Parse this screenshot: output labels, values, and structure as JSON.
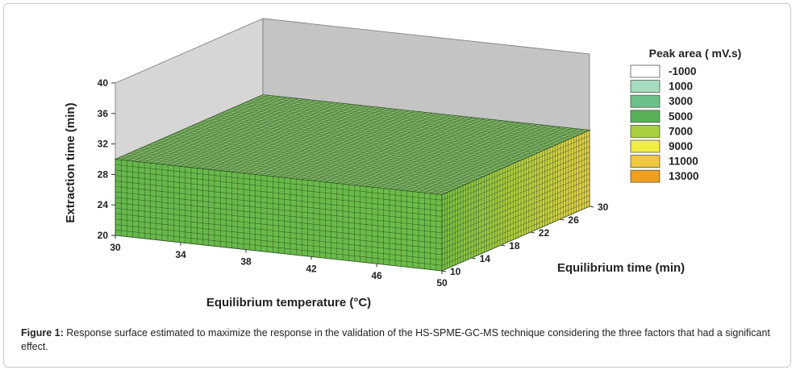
{
  "chart_data": {
    "type": "surface3d",
    "x_axis": {
      "label": "Equilibrium temperature (°C)",
      "ticks": [
        "30",
        "34",
        "38",
        "42",
        "46",
        "50"
      ],
      "range": [
        30,
        50
      ]
    },
    "y_axis": {
      "label": "Equilibrium time (min)",
      "ticks": [
        "10",
        "14",
        "18",
        "22",
        "26",
        "30"
      ],
      "range": [
        10,
        30
      ]
    },
    "z_axis": {
      "label": "Extraction time (min)",
      "ticks": [
        "20",
        "24",
        "28",
        "32",
        "36",
        "40"
      ],
      "range": [
        20,
        40
      ]
    },
    "surface_level_z": 30,
    "legend": {
      "title": "Peak area ( mV.s)",
      "position": "right",
      "entries": [
        {
          "label": "-1000",
          "color": "#ffffff"
        },
        {
          "label": "1000",
          "color": "#a8dcc0"
        },
        {
          "label": "3000",
          "color": "#6cc08a"
        },
        {
          "label": "5000",
          "color": "#58b058"
        },
        {
          "label": "7000",
          "color": "#a8d040"
        },
        {
          "label": "9000",
          "color": "#f0ee40"
        },
        {
          "label": "11000",
          "color": "#f0c840"
        },
        {
          "label": "13000",
          "color": "#f0a020"
        }
      ]
    }
  },
  "caption": {
    "lead": "Figure 1:",
    "text": " Response surface estimated to maximize the response in the validation of the HS-SPME-GC-MS technique considering the three factors that had a significant effect."
  }
}
